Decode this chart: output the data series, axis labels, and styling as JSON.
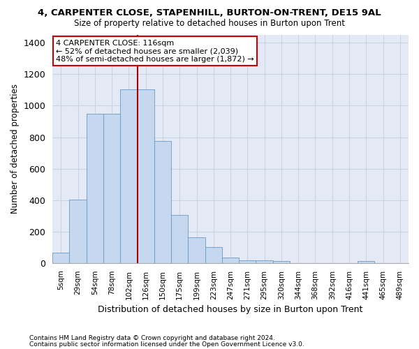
{
  "title": "4, CARPENTER CLOSE, STAPENHILL, BURTON-ON-TRENT, DE15 9AL",
  "subtitle": "Size of property relative to detached houses in Burton upon Trent",
  "xlabel": "Distribution of detached houses by size in Burton upon Trent",
  "ylabel": "Number of detached properties",
  "footnote1": "Contains HM Land Registry data © Crown copyright and database right 2024.",
  "footnote2": "Contains public sector information licensed under the Open Government Licence v3.0.",
  "categories": [
    "5sqm",
    "29sqm",
    "54sqm",
    "78sqm",
    "102sqm",
    "126sqm",
    "150sqm",
    "175sqm",
    "199sqm",
    "223sqm",
    "247sqm",
    "271sqm",
    "295sqm",
    "320sqm",
    "344sqm",
    "368sqm",
    "392sqm",
    "416sqm",
    "441sqm",
    "465sqm",
    "489sqm"
  ],
  "bar_values": [
    65,
    405,
    950,
    950,
    1105,
    1105,
    775,
    305,
    165,
    100,
    35,
    18,
    18,
    12,
    0,
    0,
    0,
    0,
    12,
    0,
    0
  ],
  "bar_color": "#c5d8ef",
  "bar_edge_color": "#6899c4",
  "grid_color": "#c8d4e4",
  "background_color": "#e4eaf5",
  "annotation_line1": "4 CARPENTER CLOSE: 116sqm",
  "annotation_line2": "← 52% of detached houses are smaller (2,039)",
  "annotation_line3": "48% of semi-detached houses are larger (1,872) →",
  "vline_color": "#aa0000",
  "vline_x": 4.5,
  "ylim": [
    0,
    1450
  ],
  "yticks": [
    0,
    200,
    400,
    600,
    800,
    1000,
    1200,
    1400
  ]
}
